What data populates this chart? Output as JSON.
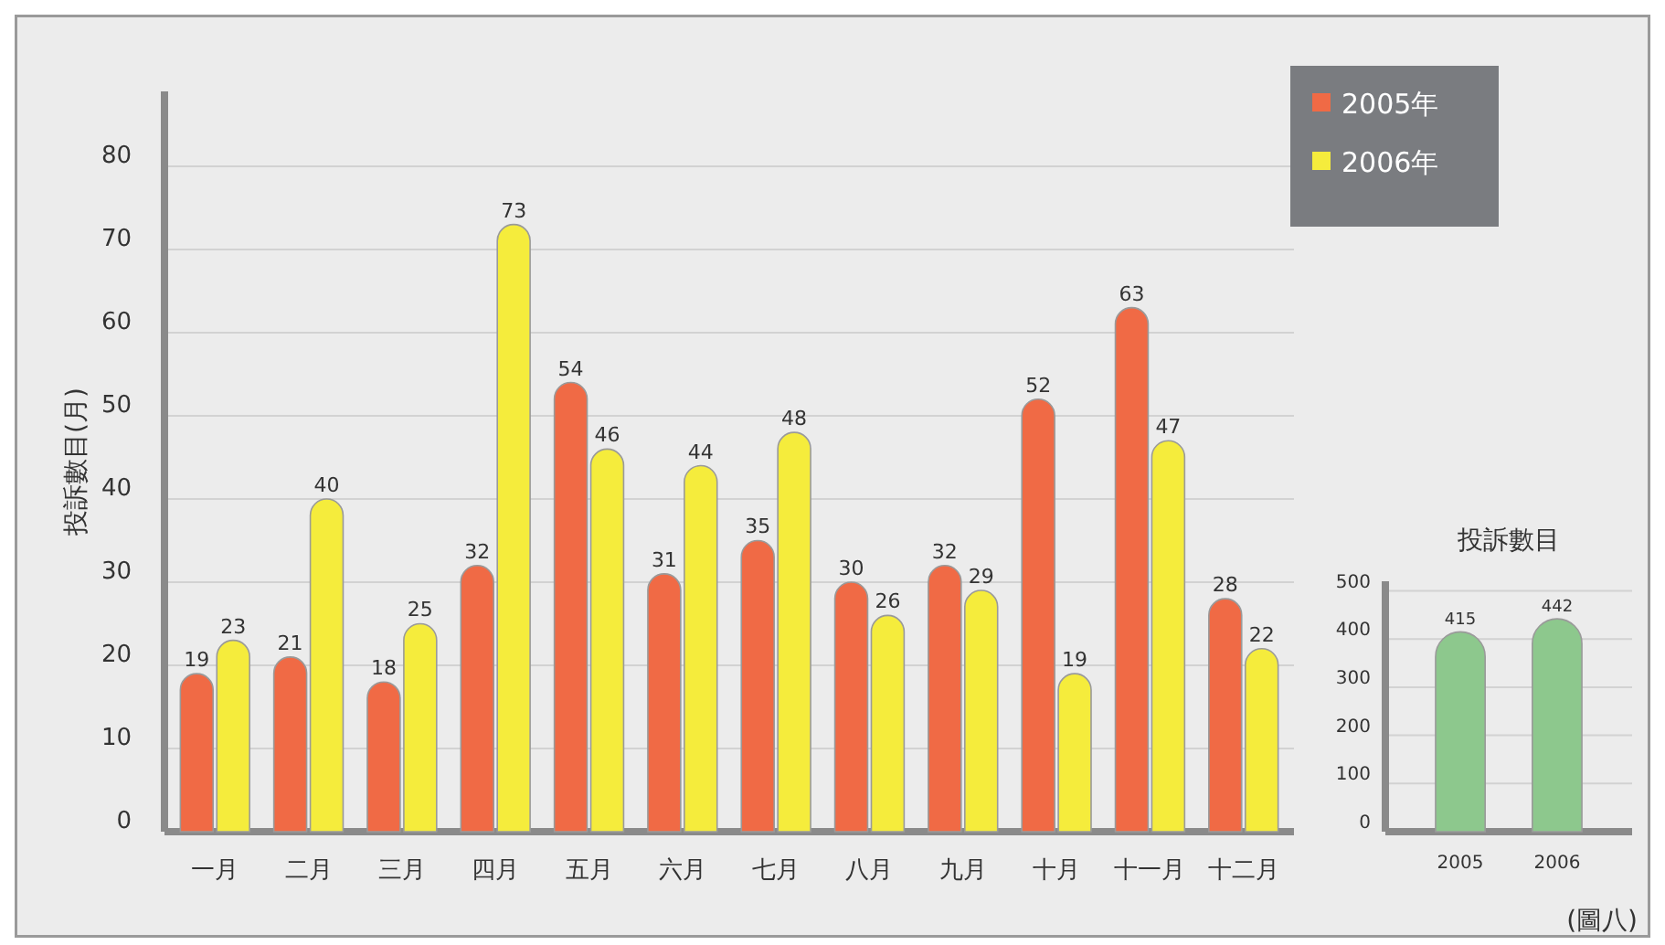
{
  "chart_data": [
    {
      "type": "bar",
      "ylabel": "投訴數目(月)",
      "categories": [
        "一月",
        "二月",
        "三月",
        "四月",
        "五月",
        "六月",
        "七月",
        "八月",
        "九月",
        "十月",
        "十一月",
        "十二月"
      ],
      "series": [
        {
          "name": "2005年",
          "color": "#f06a45",
          "values": [
            19,
            21,
            18,
            32,
            54,
            31,
            35,
            30,
            32,
            52,
            63,
            28
          ]
        },
        {
          "name": "2006年",
          "color": "#f5ec3c",
          "values": [
            23,
            40,
            25,
            73,
            46,
            44,
            48,
            26,
            29,
            19,
            47,
            22
          ]
        }
      ],
      "ylim": [
        0,
        89
      ],
      "yticks": [
        0,
        10,
        20,
        30,
        40,
        50,
        60,
        70,
        80
      ],
      "grid": "y",
      "legend": "top right",
      "data_labels": true,
      "annotations": [
        "(圖八)"
      ]
    },
    {
      "type": "bar",
      "title": "投訴數目",
      "categories": [
        "2005",
        "2006"
      ],
      "series": [
        {
          "color": "#8dc88d",
          "values": [
            415,
            442
          ]
        }
      ],
      "ylim": [
        0,
        520
      ],
      "yticks": [
        0,
        100,
        200,
        300,
        400,
        500
      ],
      "grid": "y",
      "data_labels": true
    }
  ]
}
